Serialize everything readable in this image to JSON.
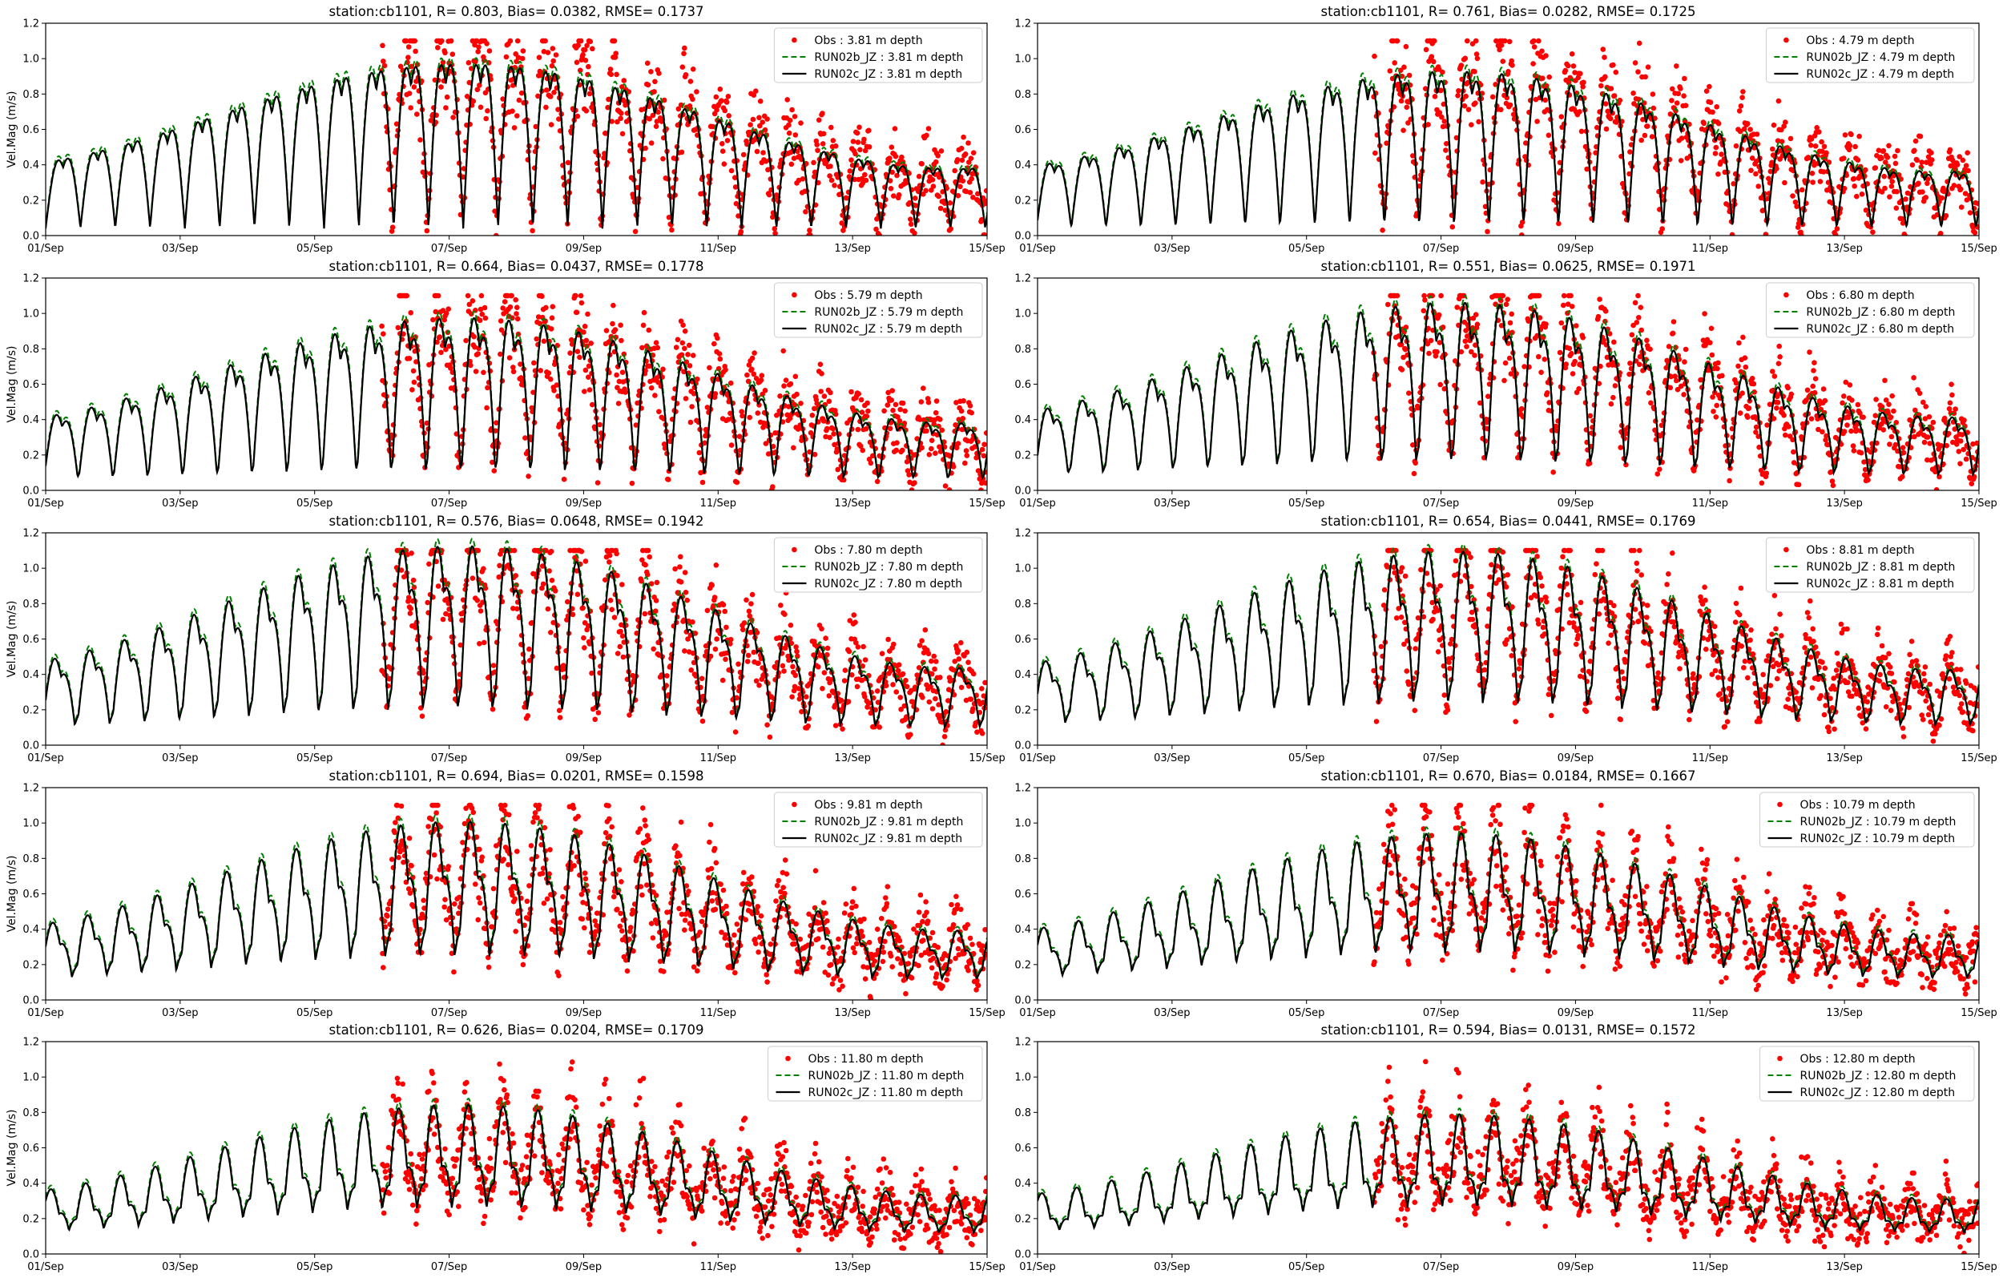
{
  "figure": {
    "colors": {
      "obs": "#ff0000",
      "run02b": "#008000",
      "run02c": "#000000",
      "axes": "#000000"
    }
  },
  "chart_data": [
    {
      "type": "line",
      "title": "station:cb1101, R= 0.803, Bias= 0.0382, RMSE= 0.1737",
      "ylabel": "Vel.Mag (m/s)",
      "xlabel": "",
      "ylim": [
        0,
        1.2
      ],
      "xlim": [
        0,
        14
      ],
      "y_ticks": [
        "0.0",
        "0.2",
        "0.4",
        "0.6",
        "0.8",
        "1.0",
        "1.2"
      ],
      "x_ticks": [
        "01/Sep",
        "03/Sep",
        "05/Sep",
        "07/Sep",
        "09/Sep",
        "11/Sep",
        "13/Sep",
        "15/Sep"
      ],
      "legend_position": "top-right",
      "x_units": "days since 01/Sep",
      "model_params": {
        "base": 0.3,
        "amp": 0.55,
        "obs_start": 5.0
      },
      "series": [
        {
          "name": "Obs : 3.81 m depth",
          "style": "scatter"
        },
        {
          "name": "RUN02b_JZ : 3.81 m depth",
          "style": "dashed"
        },
        {
          "name": "RUN02c_JZ : 3.81 m depth",
          "style": "solid"
        }
      ]
    },
    {
      "type": "line",
      "title": "station:cb1101, R= 0.761, Bias= 0.0282, RMSE= 0.1725",
      "ylabel": "",
      "xlabel": "",
      "ylim": [
        0,
        1.2
      ],
      "xlim": [
        0,
        14
      ],
      "y_ticks": [
        "0.0",
        "0.2",
        "0.4",
        "0.6",
        "0.8",
        "1.0",
        "1.2"
      ],
      "x_ticks": [
        "01/Sep",
        "03/Sep",
        "05/Sep",
        "07/Sep",
        "09/Sep",
        "11/Sep",
        "13/Sep",
        "15/Sep"
      ],
      "legend_position": "top-right",
      "x_units": "days since 01/Sep",
      "model_params": {
        "base": 0.28,
        "amp": 0.55,
        "obs_start": 5.0
      },
      "series": [
        {
          "name": "Obs : 4.79 m depth",
          "style": "scatter"
        },
        {
          "name": "RUN02b_JZ : 4.79 m depth",
          "style": "dashed"
        },
        {
          "name": "RUN02c_JZ : 4.79 m depth",
          "style": "solid"
        }
      ]
    },
    {
      "type": "line",
      "title": "station:cb1101, R= 0.664, Bias= 0.0437, RMSE= 0.1778",
      "ylabel": "Vel.Mag (m/s)",
      "xlabel": "",
      "ylim": [
        0,
        1.2
      ],
      "xlim": [
        0,
        14
      ],
      "y_ticks": [
        "0.0",
        "0.2",
        "0.4",
        "0.6",
        "0.8",
        "1.0",
        "1.2"
      ],
      "x_ticks": [
        "01/Sep",
        "03/Sep",
        "05/Sep",
        "07/Sep",
        "09/Sep",
        "11/Sep",
        "13/Sep",
        "15/Sep"
      ],
      "legend_position": "top-right",
      "x_units": "days since 01/Sep",
      "model_params": {
        "base": 0.3,
        "amp": 0.52,
        "obs_start": 5.0
      },
      "series": [
        {
          "name": "Obs : 5.79 m depth",
          "style": "scatter"
        },
        {
          "name": "RUN02b_JZ : 5.79 m depth",
          "style": "dashed"
        },
        {
          "name": "RUN02c_JZ : 5.79 m depth",
          "style": "solid"
        }
      ]
    },
    {
      "type": "line",
      "title": "station:cb1101, R= 0.551, Bias= 0.0625, RMSE= 0.1971",
      "ylabel": "",
      "xlabel": "",
      "ylim": [
        0,
        1.2
      ],
      "xlim": [
        0,
        14
      ],
      "y_ticks": [
        "0.0",
        "0.2",
        "0.4",
        "0.6",
        "0.8",
        "1.0",
        "1.2"
      ],
      "x_ticks": [
        "01/Sep",
        "03/Sep",
        "05/Sep",
        "07/Sep",
        "09/Sep",
        "11/Sep",
        "13/Sep",
        "15/Sep"
      ],
      "legend_position": "top-right",
      "x_units": "days since 01/Sep",
      "model_params": {
        "base": 0.32,
        "amp": 0.52,
        "obs_start": 5.0
      },
      "series": [
        {
          "name": "Obs : 6.80 m depth",
          "style": "scatter"
        },
        {
          "name": "RUN02b_JZ : 6.80 m depth",
          "style": "dashed"
        },
        {
          "name": "RUN02c_JZ : 6.80 m depth",
          "style": "solid"
        }
      ]
    },
    {
      "type": "line",
      "title": "station:cb1101, R= 0.576, Bias= 0.0648, RMSE= 0.1942",
      "ylabel": "Vel.Mag (m/s)",
      "xlabel": "",
      "ylim": [
        0,
        1.2
      ],
      "xlim": [
        0,
        14
      ],
      "y_ticks": [
        "0.0",
        "0.2",
        "0.4",
        "0.6",
        "0.8",
        "1.0",
        "1.2"
      ],
      "x_ticks": [
        "01/Sep",
        "03/Sep",
        "05/Sep",
        "07/Sep",
        "09/Sep",
        "11/Sep",
        "13/Sep",
        "15/Sep"
      ],
      "legend_position": "top-right",
      "x_units": "days since 01/Sep",
      "model_params": {
        "base": 0.32,
        "amp": 0.55,
        "obs_start": 5.0
      },
      "series": [
        {
          "name": "Obs : 7.80 m depth",
          "style": "scatter"
        },
        {
          "name": "RUN02b_JZ : 7.80 m depth",
          "style": "dashed"
        },
        {
          "name": "RUN02c_JZ : 7.80 m depth",
          "style": "solid"
        }
      ]
    },
    {
      "type": "line",
      "title": "station:cb1101, R= 0.654, Bias= 0.0441, RMSE= 0.1769",
      "ylabel": "",
      "xlabel": "",
      "ylim": [
        0,
        1.2
      ],
      "xlim": [
        0,
        14
      ],
      "y_ticks": [
        "0.0",
        "0.2",
        "0.4",
        "0.6",
        "0.8",
        "1.0",
        "1.2"
      ],
      "x_ticks": [
        "01/Sep",
        "03/Sep",
        "05/Sep",
        "07/Sep",
        "09/Sep",
        "11/Sep",
        "13/Sep",
        "15/Sep"
      ],
      "legend_position": "top-right",
      "x_units": "days since 01/Sep",
      "model_params": {
        "base": 0.32,
        "amp": 0.52,
        "obs_start": 5.0
      },
      "series": [
        {
          "name": "Obs : 8.81 m depth",
          "style": "scatter"
        },
        {
          "name": "RUN02b_JZ : 8.81 m depth",
          "style": "dashed"
        },
        {
          "name": "RUN02c_JZ : 8.81 m depth",
          "style": "solid"
        }
      ]
    },
    {
      "type": "line",
      "title": "station:cb1101, R= 0.694, Bias= 0.0201, RMSE= 0.1598",
      "ylabel": "Vel.Mag (m/s)",
      "xlabel": "",
      "ylim": [
        0,
        1.2
      ],
      "xlim": [
        0,
        14
      ],
      "y_ticks": [
        "0.0",
        "0.2",
        "0.4",
        "0.6",
        "0.8",
        "1.0",
        "1.2"
      ],
      "x_ticks": [
        "01/Sep",
        "03/Sep",
        "05/Sep",
        "07/Sep",
        "09/Sep",
        "11/Sep",
        "13/Sep",
        "15/Sep"
      ],
      "legend_position": "top-right",
      "x_units": "days since 01/Sep",
      "model_params": {
        "base": 0.3,
        "amp": 0.5,
        "obs_start": 5.0
      },
      "series": [
        {
          "name": "Obs : 9.81 m depth",
          "style": "scatter"
        },
        {
          "name": "RUN02b_JZ : 9.81 m depth",
          "style": "dashed"
        },
        {
          "name": "RUN02c_JZ : 9.81 m depth",
          "style": "solid"
        }
      ]
    },
    {
      "type": "line",
      "title": "station:cb1101, R= 0.670, Bias= 0.0184, RMSE= 0.1667",
      "ylabel": "",
      "xlabel": "",
      "ylim": [
        0,
        1.2
      ],
      "xlim": [
        0,
        14
      ],
      "y_ticks": [
        "0.0",
        "0.2",
        "0.4",
        "0.6",
        "0.8",
        "1.0",
        "1.2"
      ],
      "x_ticks": [
        "01/Sep",
        "03/Sep",
        "05/Sep",
        "07/Sep",
        "09/Sep",
        "11/Sep",
        "13/Sep",
        "15/Sep"
      ],
      "legend_position": "top-right",
      "x_units": "days since 01/Sep",
      "model_params": {
        "base": 0.3,
        "amp": 0.45,
        "obs_start": 5.0
      },
      "series": [
        {
          "name": "Obs : 10.79 m depth",
          "style": "scatter"
        },
        {
          "name": "RUN02b_JZ : 10.79 m depth",
          "style": "dashed"
        },
        {
          "name": "RUN02c_JZ : 10.79 m depth",
          "style": "solid"
        }
      ]
    },
    {
      "type": "line",
      "title": "station:cb1101, R= 0.626, Bias= 0.0204, RMSE= 0.1709",
      "ylabel": "Vel.Mag (m/s)",
      "xlabel": "",
      "ylim": [
        0,
        1.2
      ],
      "xlim": [
        0,
        14
      ],
      "y_ticks": [
        "0.0",
        "0.2",
        "0.4",
        "0.6",
        "0.8",
        "1.0",
        "1.2"
      ],
      "x_ticks": [
        "01/Sep",
        "03/Sep",
        "05/Sep",
        "07/Sep",
        "09/Sep",
        "11/Sep",
        "13/Sep",
        "15/Sep"
      ],
      "legend_position": "top-right",
      "x_units": "days since 01/Sep",
      "model_params": {
        "base": 0.28,
        "amp": 0.42,
        "obs_start": 5.0
      },
      "series": [
        {
          "name": "Obs : 11.80 m depth",
          "style": "scatter"
        },
        {
          "name": "RUN02b_JZ : 11.80 m depth",
          "style": "dashed"
        },
        {
          "name": "RUN02c_JZ : 11.80 m depth",
          "style": "solid"
        }
      ]
    },
    {
      "type": "line",
      "title": "station:cb1101, R= 0.594, Bias= 0.0131, RMSE= 0.1572",
      "ylabel": "",
      "xlabel": "",
      "ylim": [
        0,
        1.2
      ],
      "xlim": [
        0,
        14
      ],
      "y_ticks": [
        "0.0",
        "0.2",
        "0.4",
        "0.6",
        "0.8",
        "1.0",
        "1.2"
      ],
      "x_ticks": [
        "01/Sep",
        "03/Sep",
        "05/Sep",
        "07/Sep",
        "09/Sep",
        "11/Sep",
        "13/Sep",
        "15/Sep"
      ],
      "legend_position": "top-right",
      "x_units": "days since 01/Sep",
      "model_params": {
        "base": 0.28,
        "amp": 0.38,
        "obs_start": 5.0
      },
      "series": [
        {
          "name": "Obs : 12.80 m depth",
          "style": "scatter"
        },
        {
          "name": "RUN02b_JZ : 12.80 m depth",
          "style": "dashed"
        },
        {
          "name": "RUN02c_JZ : 12.80 m depth",
          "style": "solid"
        }
      ]
    }
  ]
}
